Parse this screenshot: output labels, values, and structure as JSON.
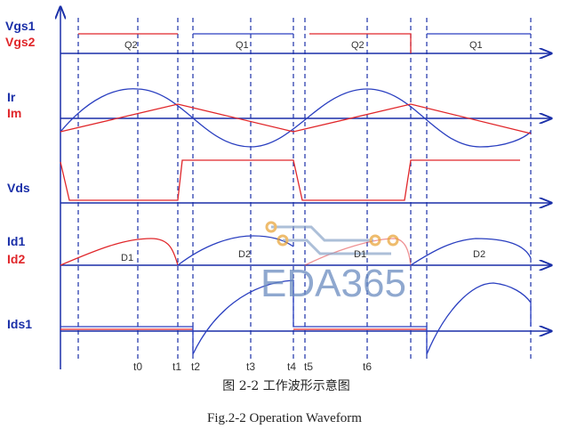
{
  "signals": {
    "vgs1": "Vgs1",
    "vgs2": "Vgs2",
    "ir": "Ir",
    "im": "Im",
    "vds": "Vds",
    "id1": "Id1",
    "id2": "Id2",
    "ids1": "Ids1"
  },
  "gate_segments": [
    "Q2",
    "Q1",
    "Q2",
    "Q1"
  ],
  "diode_segments": [
    "D1",
    "D2",
    "D1",
    "D2"
  ],
  "time_labels": [
    "t0",
    "t1",
    "t2",
    "t3",
    "t4",
    "t5",
    "t6"
  ],
  "watermark": "EDA365",
  "caption_cn": "图 2-2  工作波形示意图",
  "caption_en": "Fig.2-2 Operation Waveform"
}
